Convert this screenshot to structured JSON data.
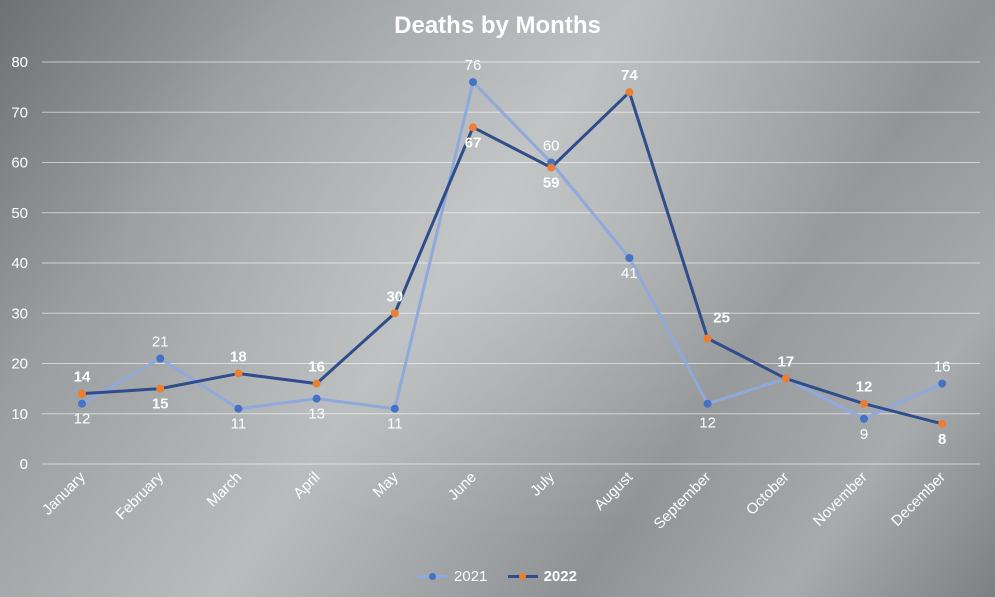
{
  "chart_data": {
    "type": "line",
    "title": "Deaths by Months",
    "xlabel": "",
    "ylabel": "",
    "categories": [
      "January",
      "February",
      "March",
      "April",
      "May",
      "June",
      "July",
      "August",
      "September",
      "October",
      "November",
      "December"
    ],
    "ylim": [
      0,
      80
    ],
    "yticks": [
      "0",
      "10",
      "20",
      "30",
      "40",
      "50",
      "60",
      "70",
      "80"
    ],
    "grid": true,
    "legend_position": "bottom",
    "series": [
      {
        "name": "2021",
        "values": [
          12,
          21,
          11,
          13,
          11,
          76,
          60,
          41,
          12,
          17,
          9,
          16
        ],
        "line_color": "#8fa9dc",
        "marker_color": "#4472c4",
        "label_bold": false
      },
      {
        "name": "2022",
        "values": [
          14,
          15,
          18,
          16,
          30,
          67,
          59,
          74,
          25,
          17,
          12,
          8
        ],
        "line_color": "#2f4d8a",
        "marker_color": "#ed7d31",
        "label_bold": true
      }
    ]
  }
}
